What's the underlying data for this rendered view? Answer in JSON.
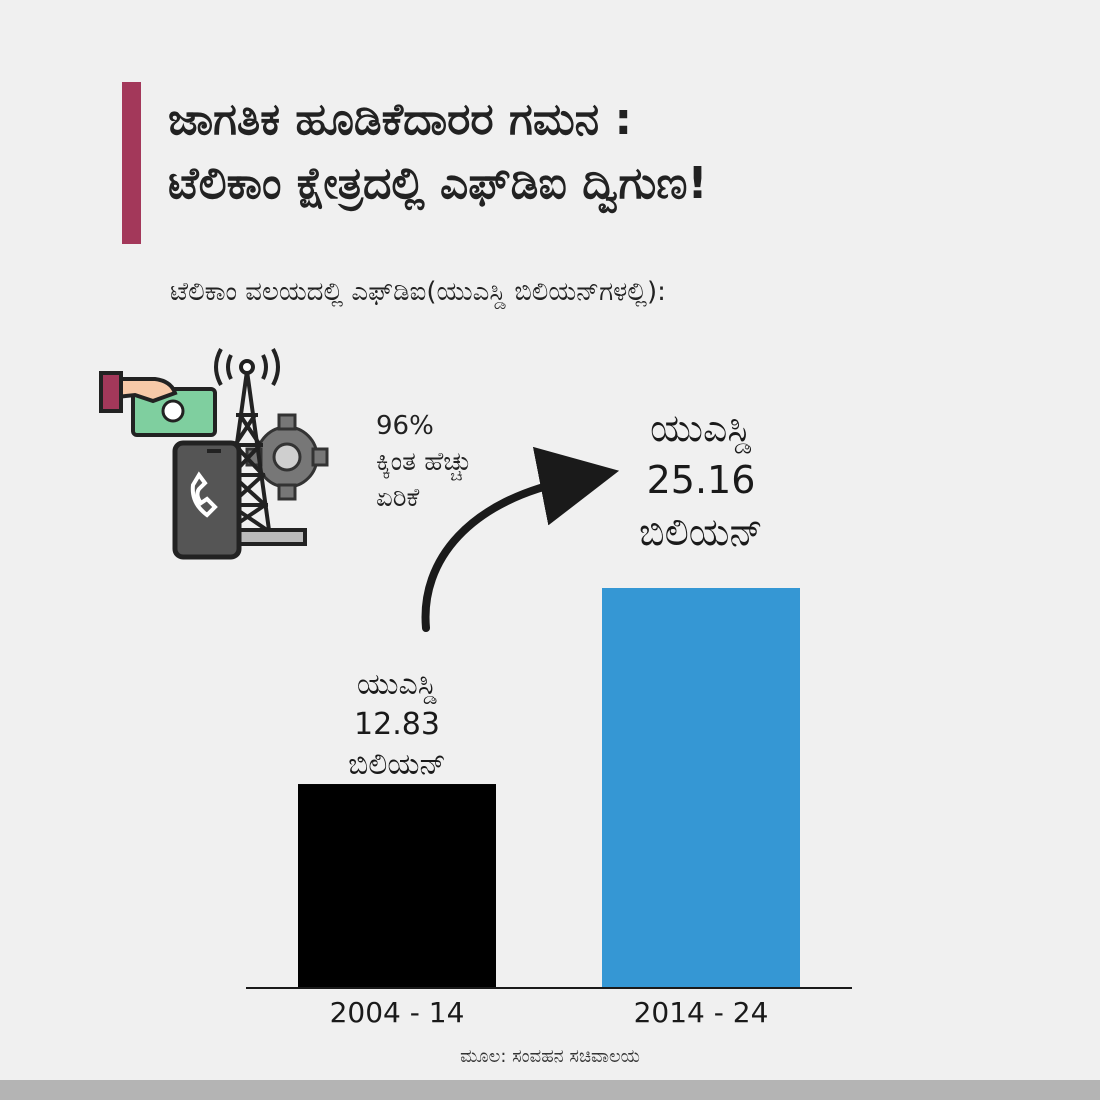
{
  "title_lines": [
    "ಜಾಗತಿಕ ಹೂಡಿಕೆದಾರರ ಗಮನ :",
    "ಟೆಲಿಕಾಂ ಕ್ಷೇತ್ರದಲ್ಲಿ ಎಫ್‌ಡಿಐ ದ್ವಿಗುಣ!"
  ],
  "subtitle": "ಟೆಲಿಕಾಂ ವಲಯದಲ್ಲಿ ಎಫ್‌ಡಿಐ(ಯುಎಸ್ಡಿ ಬಿಲಿಯನ್‌ಗಳಲ್ಲಿ):",
  "growth_note": [
    "96%",
    "ಕ್ಕಿಂತ ಹೆಚ್ಚು",
    "ಏರಿಕೆ"
  ],
  "source": "ಮೂಲ: ಸಂವಹನ ಸಚಿವಾಲಯ",
  "colors": {
    "accent": "#a3385a",
    "bar_1": "#000000",
    "bar_2": "#3597d4",
    "background": "#f0f0f0"
  },
  "icons": [
    "hand-money-icon",
    "telecom-tower-icon",
    "gear-icon",
    "smartphone-call-icon",
    "growth-arrow-icon"
  ],
  "chart_data": {
    "type": "bar",
    "categories": [
      "2004 - 14",
      "2014 - 24"
    ],
    "values": [
      12.83,
      25.16
    ],
    "data_labels": [
      [
        "ಯುಎಸ್ಡಿ",
        "12.83",
        "ಬಿಲಿಯನ್"
      ],
      [
        "ಯುಎಸ್ಡಿ",
        "25.16",
        "ಬಿಲಿಯನ್"
      ]
    ],
    "title": "ಟೆಲಿಕಾಂ ವಲಯದಲ್ಲಿ ಎಫ್‌ಡಿಐ(ಯುಎಸ್ಡಿ ಬಿಲಿಯನ್‌ಗಳಲ್ಲಿ):",
    "xlabel": "",
    "ylabel": "",
    "ylim": [
      0,
      25.16
    ],
    "grid": false,
    "legend": "none"
  }
}
